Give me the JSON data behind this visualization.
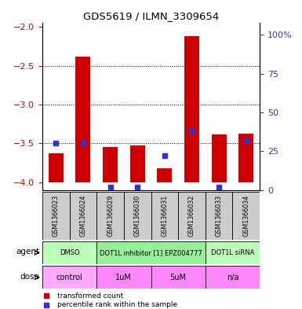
{
  "title": "GDS5619 / ILMN_3309654",
  "samples": [
    "GSM1366023",
    "GSM1366024",
    "GSM1366029",
    "GSM1366030",
    "GSM1366031",
    "GSM1366032",
    "GSM1366033",
    "GSM1366034"
  ],
  "bar_values": [
    -3.63,
    -2.38,
    -3.55,
    -3.53,
    -3.82,
    -2.12,
    -3.38,
    -3.37
  ],
  "dot_percentiles": [
    30,
    30,
    2,
    2,
    22,
    38,
    2,
    32
  ],
  "ylim_left": [
    -4.1,
    -1.95
  ],
  "ylim_right": [
    0,
    107.5
  ],
  "yticks_left": [
    -4.0,
    -3.5,
    -3.0,
    -2.5,
    -2.0
  ],
  "yticks_right": [
    0,
    25,
    50,
    75,
    100
  ],
  "bar_color": "#cc0000",
  "dot_color": "#3333cc",
  "left_tick_color": "#cc0000",
  "right_tick_color": "#3333bb",
  "agent_groups": [
    {
      "label": "DMSO",
      "start": 0,
      "end": 2,
      "color": "#bbffbb"
    },
    {
      "label": "DOT1L inhibitor [1] EPZ004777",
      "start": 2,
      "end": 6,
      "color": "#99ee99"
    },
    {
      "label": "DOT1L siRNA",
      "start": 6,
      "end": 8,
      "color": "#bbffbb"
    }
  ],
  "dose_groups": [
    {
      "label": "control",
      "start": 0,
      "end": 2,
      "color": "#ffaaff"
    },
    {
      "label": "1uM",
      "start": 2,
      "end": 4,
      "color": "#ff88ff"
    },
    {
      "label": "5uM",
      "start": 4,
      "end": 6,
      "color": "#ff88ff"
    },
    {
      "label": "n/a",
      "start": 6,
      "end": 8,
      "color": "#ff88ff"
    }
  ],
  "legend_items": [
    {
      "label": "transformed count",
      "color": "#cc0000"
    },
    {
      "label": "percentile rank within the sample",
      "color": "#3333cc"
    }
  ],
  "agent_label": "agent",
  "dose_label": "dose",
  "sample_box_color": "#cccccc",
  "n_samples": 8
}
